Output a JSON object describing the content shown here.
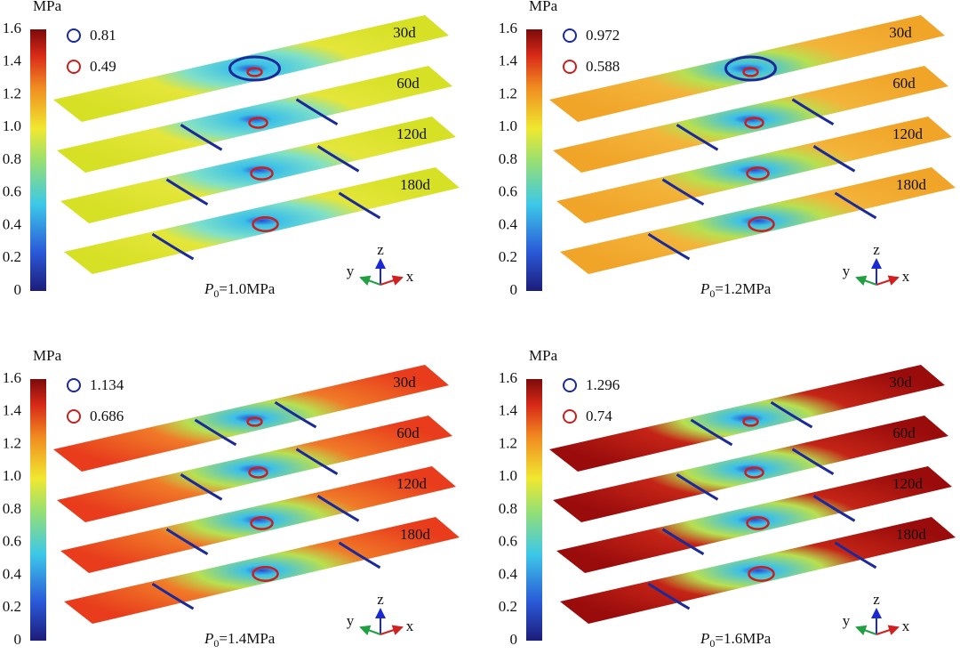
{
  "panels": [
    {
      "unit": "MPa",
      "colorbar_ticks": [
        "1.6",
        "1.4",
        "1.2",
        "1.0",
        "0.8",
        "0.6",
        "0.4",
        "0.2",
        "0"
      ],
      "legend": [
        "0.81",
        "0.49"
      ],
      "layers": [
        "30d",
        "60d",
        "120d",
        "180d"
      ],
      "pressure": {
        "symbol": "P",
        "subscript": "0",
        "value": "=1.0MPa"
      },
      "axes": [
        "z",
        "y",
        "x"
      ]
    },
    {
      "unit": "MPa",
      "colorbar_ticks": [
        "1.6",
        "1.4",
        "1.2",
        "1.0",
        "0.8",
        "0.6",
        "0.4",
        "0.2",
        "0"
      ],
      "legend": [
        "0.972",
        "0.588"
      ],
      "layers": [
        "30d",
        "60d",
        "120d",
        "180d"
      ],
      "pressure": {
        "symbol": "P",
        "subscript": "0",
        "value": "=1.2MPa"
      },
      "axes": [
        "z",
        "y",
        "x"
      ]
    },
    {
      "unit": "MPa",
      "colorbar_ticks": [
        "1.6",
        "1.4",
        "1.2",
        "1.0",
        "0.8",
        "0.6",
        "0.4",
        "0.2",
        "0"
      ],
      "legend": [
        "1.134",
        "0.686"
      ],
      "layers": [
        "30d",
        "60d",
        "120d",
        "180d"
      ],
      "pressure": {
        "symbol": "P",
        "subscript": "0",
        "value": "=1.4MPa"
      },
      "axes": [
        "z",
        "y",
        "x"
      ]
    },
    {
      "unit": "MPa",
      "colorbar_ticks": [
        "1.6",
        "1.4",
        "1.2",
        "1.0",
        "0.8",
        "0.6",
        "0.4",
        "0.2",
        "0"
      ],
      "legend": [
        "1.296",
        "0.74"
      ],
      "layers": [
        "30d",
        "60d",
        "120d",
        "180d"
      ],
      "pressure": {
        "symbol": "P",
        "subscript": "0",
        "value": "=1.6MPa"
      },
      "axes": [
        "z",
        "y",
        "x"
      ]
    }
  ]
}
